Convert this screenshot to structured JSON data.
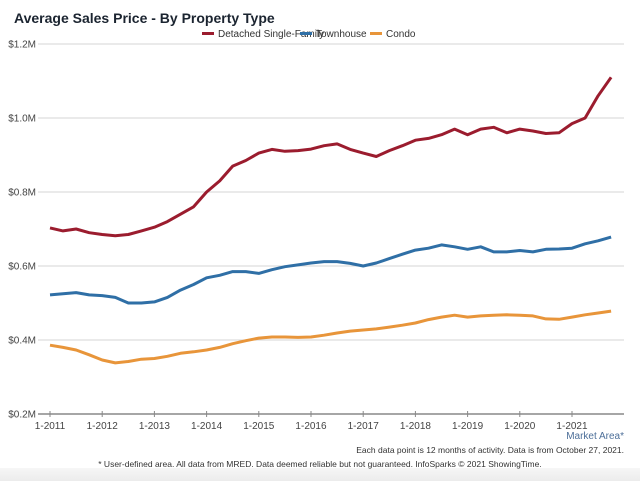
{
  "chart_data": {
    "type": "line",
    "title": "Average Sales Price - By Property Type",
    "xlabel": "",
    "ylabel": "",
    "ylim": [
      0.2,
      1.2
    ],
    "y_unit": "millions USD",
    "y_ticks": [
      "$0.2M",
      "$0.4M",
      "$0.6M",
      "$0.8M",
      "$1.0M",
      "$1.2M"
    ],
    "y_tick_values": [
      0.2,
      0.4,
      0.6,
      0.8,
      1.0,
      1.2
    ],
    "x_ticks": [
      "1-2011",
      "1-2012",
      "1-2013",
      "1-2014",
      "1-2015",
      "1-2016",
      "1-2017",
      "1-2018",
      "1-2019",
      "1-2020",
      "1-2021"
    ],
    "x_range": [
      "2011-01",
      "2021-10"
    ],
    "grid": "horizontal",
    "legend_position": "top-center",
    "x": [
      "2011-01",
      "2011-04",
      "2011-07",
      "2011-10",
      "2012-01",
      "2012-04",
      "2012-07",
      "2012-10",
      "2013-01",
      "2013-04",
      "2013-07",
      "2013-10",
      "2014-01",
      "2014-04",
      "2014-07",
      "2014-10",
      "2015-01",
      "2015-04",
      "2015-07",
      "2015-10",
      "2016-01",
      "2016-04",
      "2016-07",
      "2016-10",
      "2017-01",
      "2017-04",
      "2017-07",
      "2017-10",
      "2018-01",
      "2018-04",
      "2018-07",
      "2018-10",
      "2019-01",
      "2019-04",
      "2019-07",
      "2019-10",
      "2020-01",
      "2020-04",
      "2020-07",
      "2020-10",
      "2021-01",
      "2021-04",
      "2021-07",
      "2021-10"
    ],
    "series": [
      {
        "name": "Detached Single-Family",
        "color": "#9b1c2e",
        "values": [
          0.703,
          0.695,
          0.7,
          0.69,
          0.685,
          0.682,
          0.685,
          0.695,
          0.705,
          0.72,
          0.74,
          0.76,
          0.8,
          0.83,
          0.87,
          0.885,
          0.905,
          0.915,
          0.91,
          0.912,
          0.916,
          0.925,
          0.93,
          0.915,
          0.905,
          0.896,
          0.912,
          0.925,
          0.94,
          0.945,
          0.955,
          0.97,
          0.955,
          0.97,
          0.975,
          0.96,
          0.97,
          0.965,
          0.958,
          0.96,
          0.985,
          1.0,
          1.06,
          1.11
        ]
      },
      {
        "name": "Townhouse",
        "color": "#2f6fa6",
        "values": [
          0.522,
          0.525,
          0.528,
          0.522,
          0.52,
          0.515,
          0.5,
          0.5,
          0.503,
          0.515,
          0.535,
          0.55,
          0.568,
          0.575,
          0.585,
          0.585,
          0.58,
          0.59,
          0.598,
          0.603,
          0.608,
          0.612,
          0.612,
          0.607,
          0.6,
          0.608,
          0.62,
          0.632,
          0.643,
          0.648,
          0.657,
          0.652,
          0.645,
          0.652,
          0.638,
          0.638,
          0.642,
          0.638,
          0.645,
          0.646,
          0.648,
          0.66,
          0.668,
          0.678
        ]
      },
      {
        "name": "Condo",
        "color": "#e8953a",
        "values": [
          0.386,
          0.38,
          0.373,
          0.36,
          0.346,
          0.338,
          0.342,
          0.348,
          0.35,
          0.356,
          0.364,
          0.368,
          0.373,
          0.38,
          0.39,
          0.398,
          0.405,
          0.408,
          0.408,
          0.407,
          0.408,
          0.413,
          0.419,
          0.424,
          0.427,
          0.43,
          0.435,
          0.44,
          0.446,
          0.455,
          0.462,
          0.467,
          0.462,
          0.465,
          0.467,
          0.468,
          0.467,
          0.465,
          0.457,
          0.456,
          0.462,
          0.468,
          0.473,
          0.478
        ]
      }
    ]
  },
  "footer": {
    "market_area": "Market Area*",
    "note": "Each data point is 12 months of activity. Data is from October 27, 2021.",
    "disclaimer": "* User-defined area. All data from MRED. Data deemed reliable but not guaranteed. InfoSparks © 2021 ShowingTime."
  }
}
